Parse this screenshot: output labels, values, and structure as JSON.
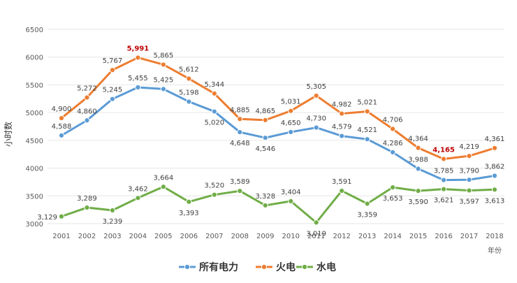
{
  "chart_data": {
    "type": "line",
    "title": "",
    "ylabel": "小时数",
    "xlabel": "年份",
    "ylim": [
      3000,
      6500
    ],
    "yticks": [
      3000,
      3500,
      4000,
      4500,
      5000,
      5500,
      6000,
      6500
    ],
    "ytick_labels": [
      "3000",
      "3500",
      "4000",
      "4500",
      "5000",
      "5500",
      "6000",
      "6500"
    ],
    "grid": true,
    "legend_position": "bottom-center",
    "categories": [
      "2001",
      "2002",
      "2003",
      "2004",
      "2005",
      "2006",
      "2007",
      "2008",
      "2009",
      "2010",
      "2011",
      "2012",
      "2013",
      "2014",
      "2015",
      "2016",
      "2017",
      "2018"
    ],
    "series": [
      {
        "name": "所有电力",
        "color": "#5b9bd5",
        "values": [
          4588,
          4860,
          5245,
          5455,
          5425,
          5198,
          5020,
          4648,
          4546,
          4650,
          4730,
          4579,
          4521,
          4286,
          3988,
          3785,
          3790,
          3862
        ],
        "labels": [
          "4,588",
          "4,860",
          "5,245",
          "5,455",
          "5,425",
          "5,198",
          "5,020",
          "4,648",
          "4,546",
          "4,650",
          "4,730",
          "4,579",
          "4,521",
          "4,286",
          "3,988",
          "3,785",
          "3,790",
          "3,862"
        ],
        "label_pos": [
          "above",
          "above",
          "above",
          "above",
          "above",
          "above",
          "below",
          "below",
          "below",
          "above",
          "above",
          "above",
          "above",
          "above",
          "above",
          "above",
          "above",
          "above"
        ],
        "highlight": []
      },
      {
        "name": "火电",
        "color": "#ed7d31",
        "values": [
          4900,
          5272,
          5767,
          5991,
          5865,
          5612,
          5344,
          4885,
          4865,
          5031,
          5305,
          4982,
          5021,
          4706,
          4364,
          4165,
          4219,
          4361
        ],
        "labels": [
          "4,900",
          "5,272",
          "5,767",
          "5,991",
          "5,865",
          "5,612",
          "5,344",
          "4,885",
          "4,865",
          "5,031",
          "5,305",
          "4,982",
          "5,021",
          "4,706",
          "4,364",
          "4,165",
          "4,219",
          "4,361"
        ],
        "label_pos": [
          "above",
          "above",
          "above",
          "above",
          "above",
          "above",
          "above",
          "above",
          "above",
          "above",
          "above",
          "above",
          "above",
          "above",
          "above",
          "above",
          "above",
          "above"
        ],
        "highlight": [
          3,
          15
        ]
      },
      {
        "name": "水电",
        "color": "#70ad47",
        "values": [
          3129,
          3289,
          3239,
          3462,
          3664,
          3393,
          3520,
          3589,
          3328,
          3404,
          3019,
          3591,
          3359,
          3653,
          3590,
          3621,
          3597,
          3613
        ],
        "labels": [
          "3,129",
          "3,289",
          "3,239",
          "3,462",
          "3,664",
          "3,393",
          "3,520",
          "3,589",
          "3,328",
          "3,404",
          "3,019",
          "3,591",
          "3,359",
          "3,653",
          "3,590",
          "3,621",
          "3,597",
          "3,613"
        ],
        "label_pos": [
          "left",
          "above",
          "below",
          "above",
          "above",
          "below",
          "above",
          "above",
          "above",
          "above",
          "below",
          "above",
          "below",
          "below",
          "below",
          "below",
          "below",
          "below"
        ],
        "highlight": []
      }
    ]
  }
}
